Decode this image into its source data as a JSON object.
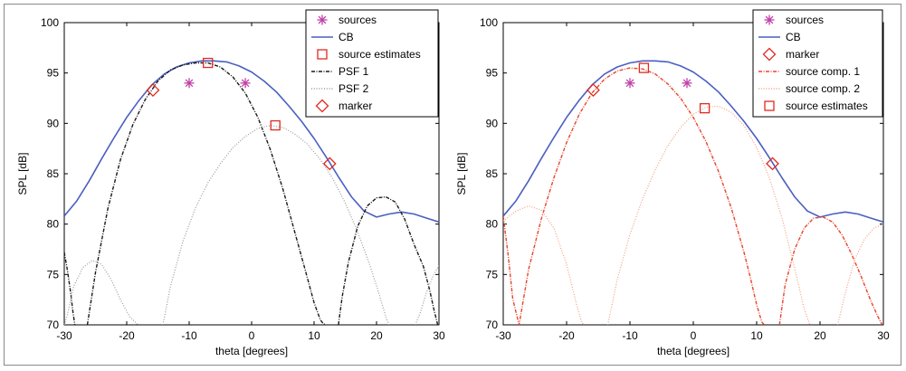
{
  "chart_data": [
    {
      "type": "line",
      "xlabel": "theta [degrees]",
      "ylabel": "SPL [dB]",
      "xlim": [
        -30,
        30
      ],
      "ylim": [
        70,
        100
      ],
      "xticks": [
        -30,
        -20,
        -10,
        0,
        10,
        20,
        30
      ],
      "yticks": [
        70,
        75,
        80,
        85,
        90,
        95,
        100
      ],
      "grid": false,
      "legend_position": "top-right",
      "legend": [
        {
          "label": "sources",
          "kind": "marker",
          "symbol": "asterisk",
          "color": "#c040a8"
        },
        {
          "label": "CB",
          "kind": "line",
          "color": "#4a5fc1",
          "dash": "solid"
        },
        {
          "label": "source estimates",
          "kind": "marker",
          "symbol": "square",
          "color": "#e02a20"
        },
        {
          "label": "PSF 1",
          "kind": "line",
          "color": "#1a1a1a",
          "dash": "dashdot"
        },
        {
          "label": "PSF 2",
          "kind": "line",
          "color": "#9a9a9a",
          "dash": "dotted"
        },
        {
          "label": "marker",
          "kind": "marker",
          "symbol": "diamond",
          "color": "#e02a20"
        }
      ],
      "series": [
        {
          "name": "CB",
          "color": "#4a5fc1",
          "dash": "solid",
          "width": 1.6,
          "x": [
            -30,
            -28,
            -26,
            -24,
            -22,
            -20,
            -18,
            -16,
            -14,
            -12,
            -10,
            -8,
            -6,
            -4,
            -2,
            0,
            2,
            4,
            6,
            8,
            10,
            12,
            14,
            16,
            18,
            20,
            22,
            24,
            26,
            28,
            30
          ],
          "y": [
            80.8,
            82.3,
            84.3,
            86.5,
            88.6,
            90.6,
            92.3,
            93.8,
            94.9,
            95.6,
            96.0,
            96.2,
            96.2,
            96.1,
            95.7,
            95.1,
            94.2,
            93.1,
            91.7,
            90.2,
            88.5,
            86.6,
            84.6,
            82.7,
            81.3,
            80.7,
            81.0,
            81.2,
            81.0,
            80.6,
            80.2
          ]
        },
        {
          "name": "PSF 1",
          "color": "#1a1a1a",
          "dash": "4,1.5,1,1.5",
          "width": 1.4,
          "x": [
            -30,
            -29.5,
            -29,
            -28.6,
            -28.3,
            null,
            -26.3,
            -25,
            -23,
            -21,
            -19,
            -17,
            -15,
            -13,
            -11,
            -9,
            -7,
            -5,
            -3,
            -1,
            1,
            3,
            5,
            7,
            9,
            10,
            11,
            11.5,
            11.9,
            null,
            13.9,
            14.5,
            15.5,
            17,
            18.5,
            20,
            21.5,
            23,
            24.5,
            26,
            27.5,
            28.5,
            29.2,
            29.8
          ],
          "y": [
            77.2,
            75.4,
            73.3,
            71.2,
            70.0,
            null,
            70.0,
            75.2,
            81.6,
            86.4,
            89.9,
            92.4,
            94.2,
            95.3,
            95.8,
            96.0,
            96.0,
            95.6,
            94.6,
            93.0,
            90.6,
            87.4,
            83.5,
            79.0,
            74.5,
            72.2,
            70.5,
            70.1,
            70.0,
            null,
            70.0,
            72.8,
            76.2,
            79.8,
            81.8,
            82.6,
            82.7,
            82.2,
            80.5,
            78.0,
            75.8,
            73.5,
            71.5,
            70.0
          ]
        },
        {
          "name": "PSF 2",
          "color": "#9a9a9a",
          "dash": "1,1.8",
          "width": 1.2,
          "x": [
            -30,
            -29.5,
            -28.5,
            -27,
            -25.5,
            -24,
            -22.5,
            -21,
            -19.5,
            -18.5,
            -18.2,
            null,
            -14.2,
            -13,
            -11,
            -9,
            -7,
            -5,
            -3,
            -1,
            1,
            3,
            5,
            7,
            9,
            11,
            13,
            15,
            17,
            19,
            20.5,
            21.5,
            22,
            null,
            26.2,
            27,
            28,
            29,
            30
          ],
          "y": [
            70.0,
            71.0,
            73.8,
            75.7,
            76.4,
            76.0,
            74.5,
            72.5,
            70.8,
            70.2,
            70.0,
            null,
            70.0,
            73.8,
            78.3,
            81.6,
            84.1,
            86.0,
            87.6,
            88.7,
            89.5,
            89.8,
            89.6,
            88.9,
            87.9,
            86.4,
            84.5,
            82.1,
            79.2,
            75.8,
            72.9,
            70.8,
            70.0,
            null,
            70.0,
            71.2,
            73.2,
            74.8,
            75.9
          ]
        }
      ],
      "markers": [
        {
          "name": "sources",
          "symbol": "asterisk",
          "color": "#c040a8",
          "x": [
            -10,
            -1
          ],
          "y": [
            94.0,
            94.0
          ]
        },
        {
          "name": "source estimates",
          "symbol": "square",
          "color": "#e02a20",
          "x": [
            -7,
            3.8
          ],
          "y": [
            96.0,
            89.8
          ]
        },
        {
          "name": "marker",
          "symbol": "diamond",
          "color": "#e02a20",
          "x": [
            -15.8,
            12.5
          ],
          "y": [
            93.3,
            86.0
          ]
        }
      ]
    },
    {
      "type": "line",
      "xlabel": "theta [degrees]",
      "ylabel": "SPL [dB]",
      "xlim": [
        -30,
        30
      ],
      "ylim": [
        70,
        100
      ],
      "xticks": [
        -30,
        -20,
        -10,
        0,
        10,
        20,
        30
      ],
      "yticks": [
        70,
        75,
        80,
        85,
        90,
        95,
        100
      ],
      "grid": false,
      "legend_position": "top-right",
      "legend": [
        {
          "label": "sources",
          "kind": "marker",
          "symbol": "asterisk",
          "color": "#c040a8"
        },
        {
          "label": "CB",
          "kind": "line",
          "color": "#4a5fc1",
          "dash": "solid"
        },
        {
          "label": "marker",
          "kind": "marker",
          "symbol": "diamond",
          "color": "#e02a20"
        },
        {
          "label": "source comp. 1",
          "kind": "line",
          "color": "#e8452c",
          "dash": "dashdot"
        },
        {
          "label": "source comp. 2",
          "kind": "line",
          "color": "#f0a080",
          "dash": "dotted"
        },
        {
          "label": "source estimates",
          "kind": "marker",
          "symbol": "square",
          "color": "#e02a20"
        }
      ],
      "series": [
        {
          "name": "CB",
          "color": "#4a5fc1",
          "dash": "solid",
          "width": 1.6,
          "x": [
            -30,
            -28,
            -26,
            -24,
            -22,
            -20,
            -18,
            -16,
            -14,
            -12,
            -10,
            -8,
            -6,
            -4,
            -2,
            0,
            2,
            4,
            6,
            8,
            10,
            12,
            14,
            16,
            18,
            20,
            22,
            24,
            26,
            28,
            30
          ],
          "y": [
            80.8,
            82.3,
            84.3,
            86.5,
            88.6,
            90.6,
            92.3,
            93.8,
            94.9,
            95.6,
            96.0,
            96.2,
            96.2,
            96.1,
            95.7,
            95.1,
            94.2,
            93.1,
            91.7,
            90.2,
            88.5,
            86.6,
            84.6,
            82.7,
            81.3,
            80.7,
            81.0,
            81.2,
            81.0,
            80.6,
            80.2
          ]
        },
        {
          "name": "source comp. 1",
          "color": "#e8452c",
          "dash": "4,1.5,1,1.5",
          "width": 1.4,
          "x": [
            -30,
            -29.2,
            -28.5,
            -27.5,
            -26,
            -24,
            -22,
            -20,
            -18,
            -16,
            -14,
            -12,
            -10,
            -8,
            -6,
            -4,
            -2,
            0,
            2,
            4,
            6,
            8,
            9,
            10,
            10.8,
            11.2,
            null,
            13.6,
            14.5,
            16,
            17.5,
            19,
            20.5,
            22,
            23.5,
            25,
            26.5,
            28,
            29,
            29.8
          ],
          "y": [
            80.8,
            76.8,
            72.6,
            70.0,
            75.5,
            80.5,
            84.6,
            88.1,
            90.9,
            93.0,
            94.4,
            95.2,
            95.5,
            95.4,
            94.9,
            93.9,
            92.5,
            90.6,
            88.2,
            85.2,
            81.6,
            77.2,
            74.7,
            72.0,
            70.3,
            70.0,
            null,
            70.0,
            74.0,
            77.5,
            79.6,
            80.6,
            80.7,
            80.2,
            78.9,
            77.0,
            74.8,
            72.4,
            71.0,
            70.0
          ]
        },
        {
          "name": "source comp. 2",
          "color": "#f0a080",
          "dash": "1,1.8",
          "width": 1.2,
          "x": [
            -30,
            -28,
            -26,
            -24,
            -22,
            -20,
            -18.5,
            -17.6,
            -17.2,
            null,
            -13.5,
            -12,
            -10,
            -8,
            -6,
            -4,
            -2,
            0,
            2,
            4,
            6,
            8,
            10,
            12,
            14,
            16,
            17.5,
            18.4,
            null,
            22.8,
            24,
            25.5,
            27,
            28.5,
            30
          ],
          "y": [
            80.3,
            81.3,
            81.8,
            81.4,
            79.6,
            76.0,
            72.2,
            70.2,
            70.0,
            null,
            70.0,
            74.5,
            79.0,
            82.5,
            85.4,
            87.8,
            89.6,
            90.9,
            91.6,
            91.7,
            91.1,
            89.8,
            87.6,
            84.6,
            80.6,
            75.6,
            71.6,
            70.0,
            null,
            70.0,
            73.2,
            76.5,
            78.5,
            79.6,
            80.0
          ]
        }
      ],
      "markers": [
        {
          "name": "sources",
          "symbol": "asterisk",
          "color": "#c040a8",
          "x": [
            -10,
            -1
          ],
          "y": [
            94.0,
            94.0
          ]
        },
        {
          "name": "marker",
          "symbol": "diamond",
          "color": "#e02a20",
          "x": [
            -15.8,
            12.5
          ],
          "y": [
            93.3,
            86.0
          ]
        },
        {
          "name": "source estimates",
          "symbol": "square",
          "color": "#e02a20",
          "x": [
            -7.8,
            1.8
          ],
          "y": [
            95.5,
            91.5
          ]
        }
      ]
    }
  ]
}
